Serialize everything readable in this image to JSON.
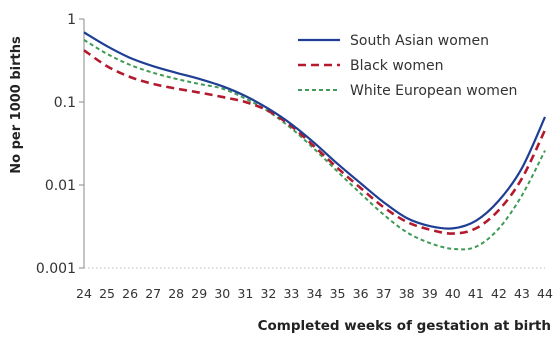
{
  "chart_data": {
    "type": "line",
    "title": "",
    "xlabel": "Completed weeks of gestation at birth",
    "ylabel": "No per 1000 births",
    "yscale": "log",
    "ylim": [
      0.001,
      1
    ],
    "xlim": [
      24,
      44
    ],
    "y_ticks": [
      {
        "value": 1,
        "label": "1"
      },
      {
        "value": 0.1,
        "label": "0.1"
      },
      {
        "value": 0.01,
        "label": "0.01"
      },
      {
        "value": 0.001,
        "label": "0.001"
      }
    ],
    "x": [
      24,
      25,
      26,
      27,
      28,
      29,
      30,
      31,
      32,
      33,
      34,
      35,
      36,
      37,
      38,
      39,
      40,
      41,
      42,
      43,
      44
    ],
    "grid": false,
    "legend_position": "top-right",
    "series": [
      {
        "name": "South Asian women",
        "color": "#1f3f95",
        "dash": "solid",
        "values": [
          0.69,
          0.47,
          0.34,
          0.27,
          0.225,
          0.19,
          0.155,
          0.118,
          0.083,
          0.054,
          0.032,
          0.018,
          0.0105,
          0.0062,
          0.004,
          0.0032,
          0.003,
          0.0037,
          0.0065,
          0.016,
          0.066
        ]
      },
      {
        "name": "Black women",
        "color": "#b31a2e",
        "dash": "dashed",
        "values": [
          0.42,
          0.27,
          0.2,
          0.165,
          0.145,
          0.13,
          0.115,
          0.1,
          0.078,
          0.051,
          0.029,
          0.016,
          0.0092,
          0.0054,
          0.0036,
          0.0029,
          0.0026,
          0.003,
          0.005,
          0.012,
          0.046
        ]
      },
      {
        "name": "White European women",
        "color": "#3f9b55",
        "dash": "dotted",
        "values": [
          0.56,
          0.38,
          0.28,
          0.225,
          0.19,
          0.165,
          0.145,
          0.11,
          0.077,
          0.048,
          0.027,
          0.0145,
          0.0079,
          0.0044,
          0.0027,
          0.002,
          0.0017,
          0.0018,
          0.003,
          0.0075,
          0.026
        ]
      }
    ]
  }
}
